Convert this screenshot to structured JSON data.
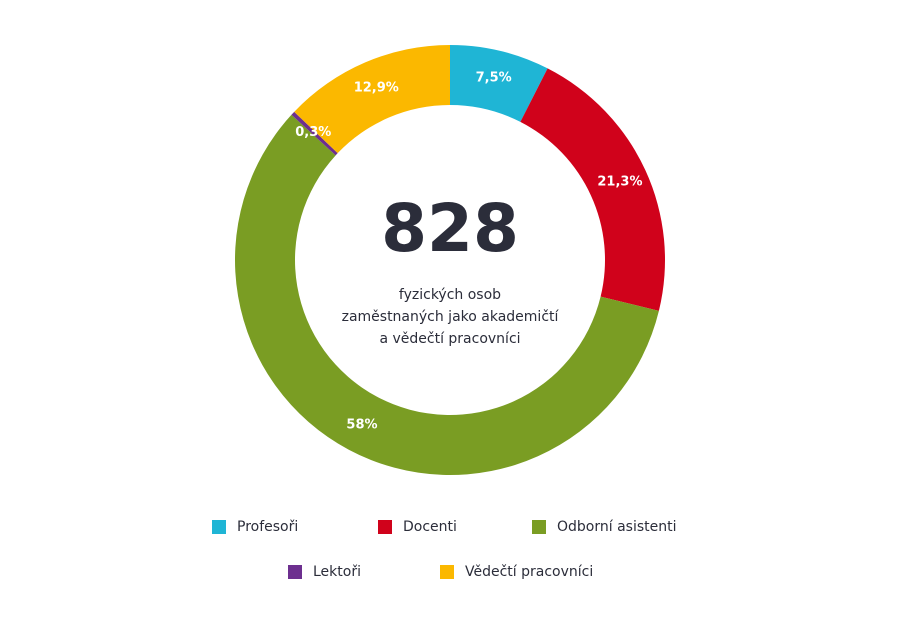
{
  "chart_data": {
    "type": "donut",
    "categories": [
      "Profesoři",
      "Docenti",
      "Odborní asistenti",
      "Lektoři",
      "Vědečtí pracovníci"
    ],
    "values": [
      7.5,
      21.3,
      58,
      0.3,
      12.9
    ],
    "value_labels": [
      "7,5%",
      "21,3%",
      "58%",
      "0,3%",
      "12,9%"
    ],
    "colors": [
      "#1fb5d5",
      "#d0021b",
      "#7a9d23",
      "#6d2f8f",
      "#fbb800"
    ],
    "center_value": "828",
    "center_text": [
      "fyzických osob",
      "zaměstnaných jako akademičtí",
      "a vědečtí pracovníci"
    ]
  }
}
